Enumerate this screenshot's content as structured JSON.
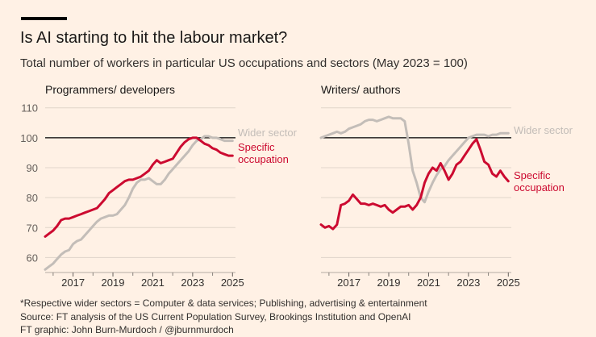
{
  "header": {
    "title": "Is AI starting to hit the labour market?",
    "subtitle": "Total number of workers in particular US occupations and sectors (May 2023 = 100)"
  },
  "footer": {
    "note": "*Respective wider sectors = Computer & data services; Publishing, advertising & entertainment",
    "source": "Source: FT analysis of the US Current Population Survey, Brookings Institution and OpenAI",
    "credit": "FT graphic: John Burn-Murdoch / @jburnmurdoch"
  },
  "colors": {
    "background": "#fff1e5",
    "specific": "#cc0a30",
    "wider": "#c3bdb8",
    "reference_line": "#000000",
    "grid": "#e0d5ca",
    "text": "#33302e",
    "tick_text": "#66605c"
  },
  "chart_data": [
    {
      "type": "line",
      "title": "Programmers/ developers",
      "xlabel": "",
      "ylabel": "",
      "x_ticks": [
        2017,
        2019,
        2021,
        2023,
        2025
      ],
      "xlim": [
        2015.6,
        2025.15
      ],
      "y_ticks": [
        60,
        70,
        80,
        90,
        100,
        110
      ],
      "ylim": [
        55,
        111
      ],
      "reference_value": 100,
      "series": [
        {
          "name": "Wider sector",
          "label": "Wider sector",
          "color_key": "wider",
          "x": [
            2015.6,
            2015.8,
            2016.0,
            2016.2,
            2016.4,
            2016.6,
            2016.8,
            2017.0,
            2017.2,
            2017.4,
            2017.6,
            2017.8,
            2018.0,
            2018.2,
            2018.4,
            2018.6,
            2018.8,
            2019.0,
            2019.2,
            2019.4,
            2019.6,
            2019.8,
            2020.0,
            2020.2,
            2020.4,
            2020.6,
            2020.8,
            2021.0,
            2021.2,
            2021.4,
            2021.6,
            2021.8,
            2022.0,
            2022.2,
            2022.4,
            2022.6,
            2022.8,
            2023.0,
            2023.2,
            2023.4,
            2023.6,
            2023.8,
            2024.0,
            2024.2,
            2024.4,
            2024.6,
            2024.8,
            2025.0
          ],
          "values": [
            56,
            57,
            58,
            59.5,
            61,
            62,
            62.5,
            64.5,
            65.5,
            66,
            67.5,
            69,
            70.5,
            72,
            73,
            73.5,
            74,
            74,
            74.5,
            76,
            77.5,
            80,
            83,
            85,
            86,
            86,
            86.5,
            85.5,
            84.5,
            84.5,
            86,
            88,
            89.5,
            91,
            92.5,
            94,
            95.5,
            97.5,
            99,
            99.5,
            100.5,
            100.5,
            100,
            100,
            99.5,
            99,
            99,
            99
          ]
        },
        {
          "name": "Specific occupation",
          "label": "Specific occupation",
          "color_key": "specific",
          "x": [
            2015.6,
            2015.8,
            2016.0,
            2016.2,
            2016.4,
            2016.6,
            2016.8,
            2017.0,
            2017.2,
            2017.4,
            2017.6,
            2017.8,
            2018.0,
            2018.2,
            2018.4,
            2018.6,
            2018.8,
            2019.0,
            2019.2,
            2019.4,
            2019.6,
            2019.8,
            2020.0,
            2020.2,
            2020.4,
            2020.6,
            2020.8,
            2021.0,
            2021.2,
            2021.4,
            2021.6,
            2021.8,
            2022.0,
            2022.2,
            2022.4,
            2022.6,
            2022.8,
            2023.0,
            2023.2,
            2023.4,
            2023.6,
            2023.8,
            2024.0,
            2024.2,
            2024.4,
            2024.6,
            2024.8,
            2025.0
          ],
          "values": [
            67,
            68,
            69,
            70.5,
            72.5,
            73,
            73,
            73.5,
            74,
            74.5,
            75,
            75.5,
            76,
            76.5,
            78,
            79.5,
            81.5,
            82.5,
            83.5,
            84.5,
            85.5,
            86,
            86,
            86.5,
            87,
            88,
            89,
            91,
            92.5,
            91.5,
            92,
            92.5,
            93,
            95,
            97,
            98.5,
            99.5,
            100,
            100,
            99,
            98,
            97.5,
            96.5,
            96,
            95,
            94.5,
            94,
            94
          ]
        }
      ]
    },
    {
      "type": "line",
      "title": "Writers/ authors",
      "xlabel": "",
      "ylabel": "",
      "x_ticks": [
        2017,
        2019,
        2021,
        2023,
        2025
      ],
      "xlim": [
        2015.6,
        2025.15
      ],
      "y_ticks": [
        60,
        70,
        80,
        90,
        100,
        110
      ],
      "ylim": [
        55,
        111
      ],
      "reference_value": 100,
      "series": [
        {
          "name": "Wider sector",
          "label": "Wider sector",
          "color_key": "wider",
          "x": [
            2015.6,
            2015.8,
            2016.0,
            2016.2,
            2016.4,
            2016.6,
            2016.8,
            2017.0,
            2017.2,
            2017.4,
            2017.6,
            2017.8,
            2018.0,
            2018.2,
            2018.4,
            2018.6,
            2018.8,
            2019.0,
            2019.2,
            2019.4,
            2019.6,
            2019.8,
            2020.0,
            2020.2,
            2020.4,
            2020.6,
            2020.8,
            2021.0,
            2021.2,
            2021.4,
            2021.6,
            2021.8,
            2022.0,
            2022.2,
            2022.4,
            2022.6,
            2022.8,
            2023.0,
            2023.2,
            2023.4,
            2023.6,
            2023.8,
            2024.0,
            2024.2,
            2024.4,
            2024.6,
            2024.8,
            2025.0
          ],
          "values": [
            100,
            100.5,
            101,
            101.5,
            102,
            101.5,
            102,
            103,
            103.5,
            104,
            104.5,
            105.5,
            106,
            106,
            105.5,
            106,
            106.5,
            107,
            106.5,
            106.5,
            106.5,
            105.5,
            98,
            89,
            85,
            80,
            78.5,
            82,
            85,
            87.5,
            89.5,
            90.5,
            92.5,
            94,
            95.5,
            97,
            98.5,
            100,
            100.5,
            101,
            101,
            101,
            100.5,
            101,
            101,
            101.5,
            101.5,
            101.5
          ]
        },
        {
          "name": "Specific occupation",
          "label": "Specific occupation",
          "color_key": "specific",
          "x": [
            2015.6,
            2015.8,
            2016.0,
            2016.2,
            2016.4,
            2016.6,
            2016.8,
            2017.0,
            2017.2,
            2017.4,
            2017.6,
            2017.8,
            2018.0,
            2018.2,
            2018.4,
            2018.6,
            2018.8,
            2019.0,
            2019.2,
            2019.4,
            2019.6,
            2019.8,
            2020.0,
            2020.2,
            2020.4,
            2020.6,
            2020.8,
            2021.0,
            2021.2,
            2021.4,
            2021.6,
            2021.8,
            2022.0,
            2022.2,
            2022.4,
            2022.6,
            2022.8,
            2023.0,
            2023.2,
            2023.4,
            2023.6,
            2023.8,
            2024.0,
            2024.2,
            2024.4,
            2024.6,
            2024.8,
            2025.0
          ],
          "values": [
            71,
            70,
            70.5,
            69.5,
            71,
            77.5,
            78,
            79,
            81,
            79.5,
            78,
            78,
            77.5,
            78,
            77.5,
            77,
            77.5,
            76,
            75,
            76,
            77,
            77,
            77.5,
            76,
            77.5,
            80,
            85,
            88,
            90,
            89,
            91.5,
            89,
            86,
            88,
            91,
            92,
            94,
            96,
            98,
            99.5,
            96,
            92,
            91,
            88,
            87,
            89,
            87,
            85.5
          ]
        }
      ]
    }
  ]
}
